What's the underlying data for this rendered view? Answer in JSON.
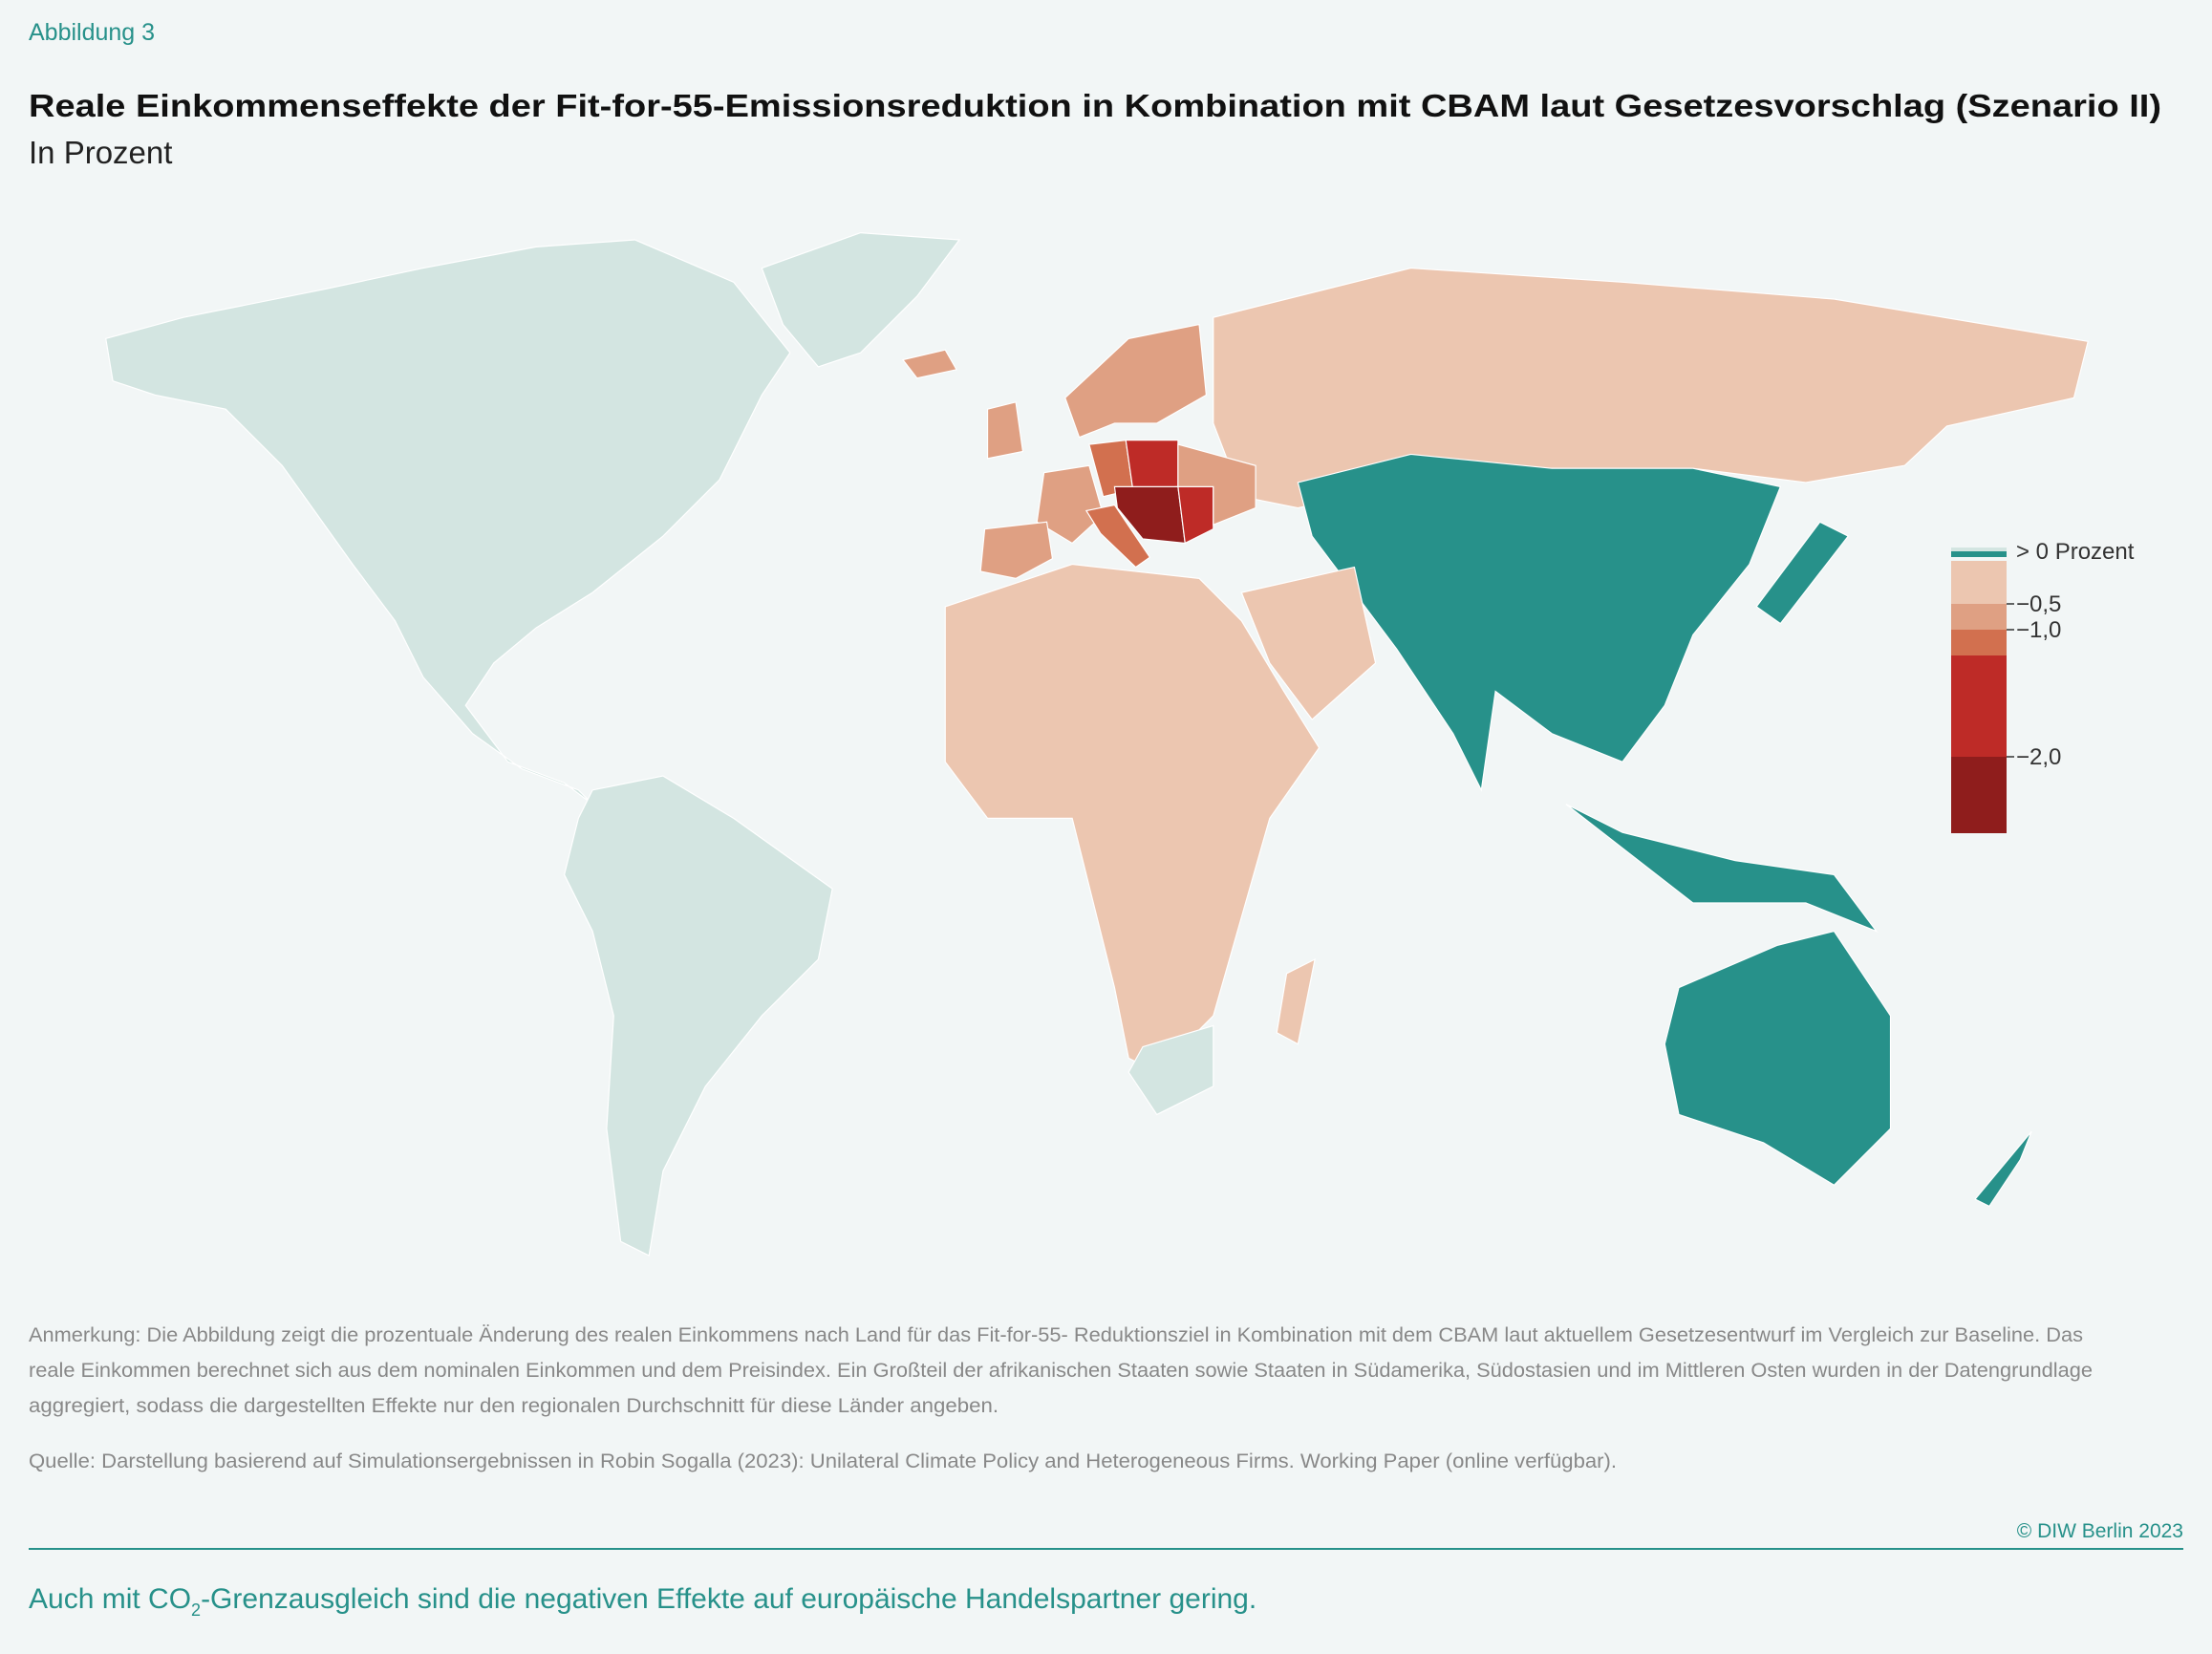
{
  "figure_label": "Abbildung 3",
  "title": "Reale Einkommenseffekte der Fit-for-55-Emissionsreduktion in Kombination mit CBAM laut Gesetzesvorschlag (Szenario II)",
  "subtitle": "In Prozent",
  "legend": {
    "colors": [
      "#d3e5e1",
      "#27918a",
      "#ecc6b0",
      "#dfa083",
      "#d2704f",
      "#be2b27",
      "#8f1d1c"
    ],
    "labels": [
      "> 0 Prozent",
      "−0,5",
      "−1,0",
      "−2,0"
    ]
  },
  "note": [
    "Anmerkung: Die Abbildung zeigt die prozentuale Änderung des realen Einkommens nach Land für das Fit-for-55- Reduktionsziel in Kombination mit dem CBAM laut aktuellem Gesetzesentwurf im Vergleich zur Baseline. Das",
    "reale Einkommen berechnet sich aus dem nominalen Einkommen und dem  Preisindex. Ein Großteil der afrikanischen Staaten sowie Staaten in Südamerika, Südostasien und im Mittleren Osten wurden in der Datengrundlage",
    "aggregiert, sodass die dargestellten Effekte nur den regionalen Durchschnitt für diese Länder angeben."
  ],
  "source": "Quelle: Darstellung basierend auf Simulationsergebnissen in Robin Sogalla (2023): Unilateral Climate Policy and Heterogeneous Firms. Working Paper (online verfügbar).",
  "copyright": "© DIW Berlin 2023",
  "footer": [
    "Auch mit CO",
    "2",
    "-Grenzausgleich sind die negativen Effekte auf europäische Handelspartner gering."
  ]
}
